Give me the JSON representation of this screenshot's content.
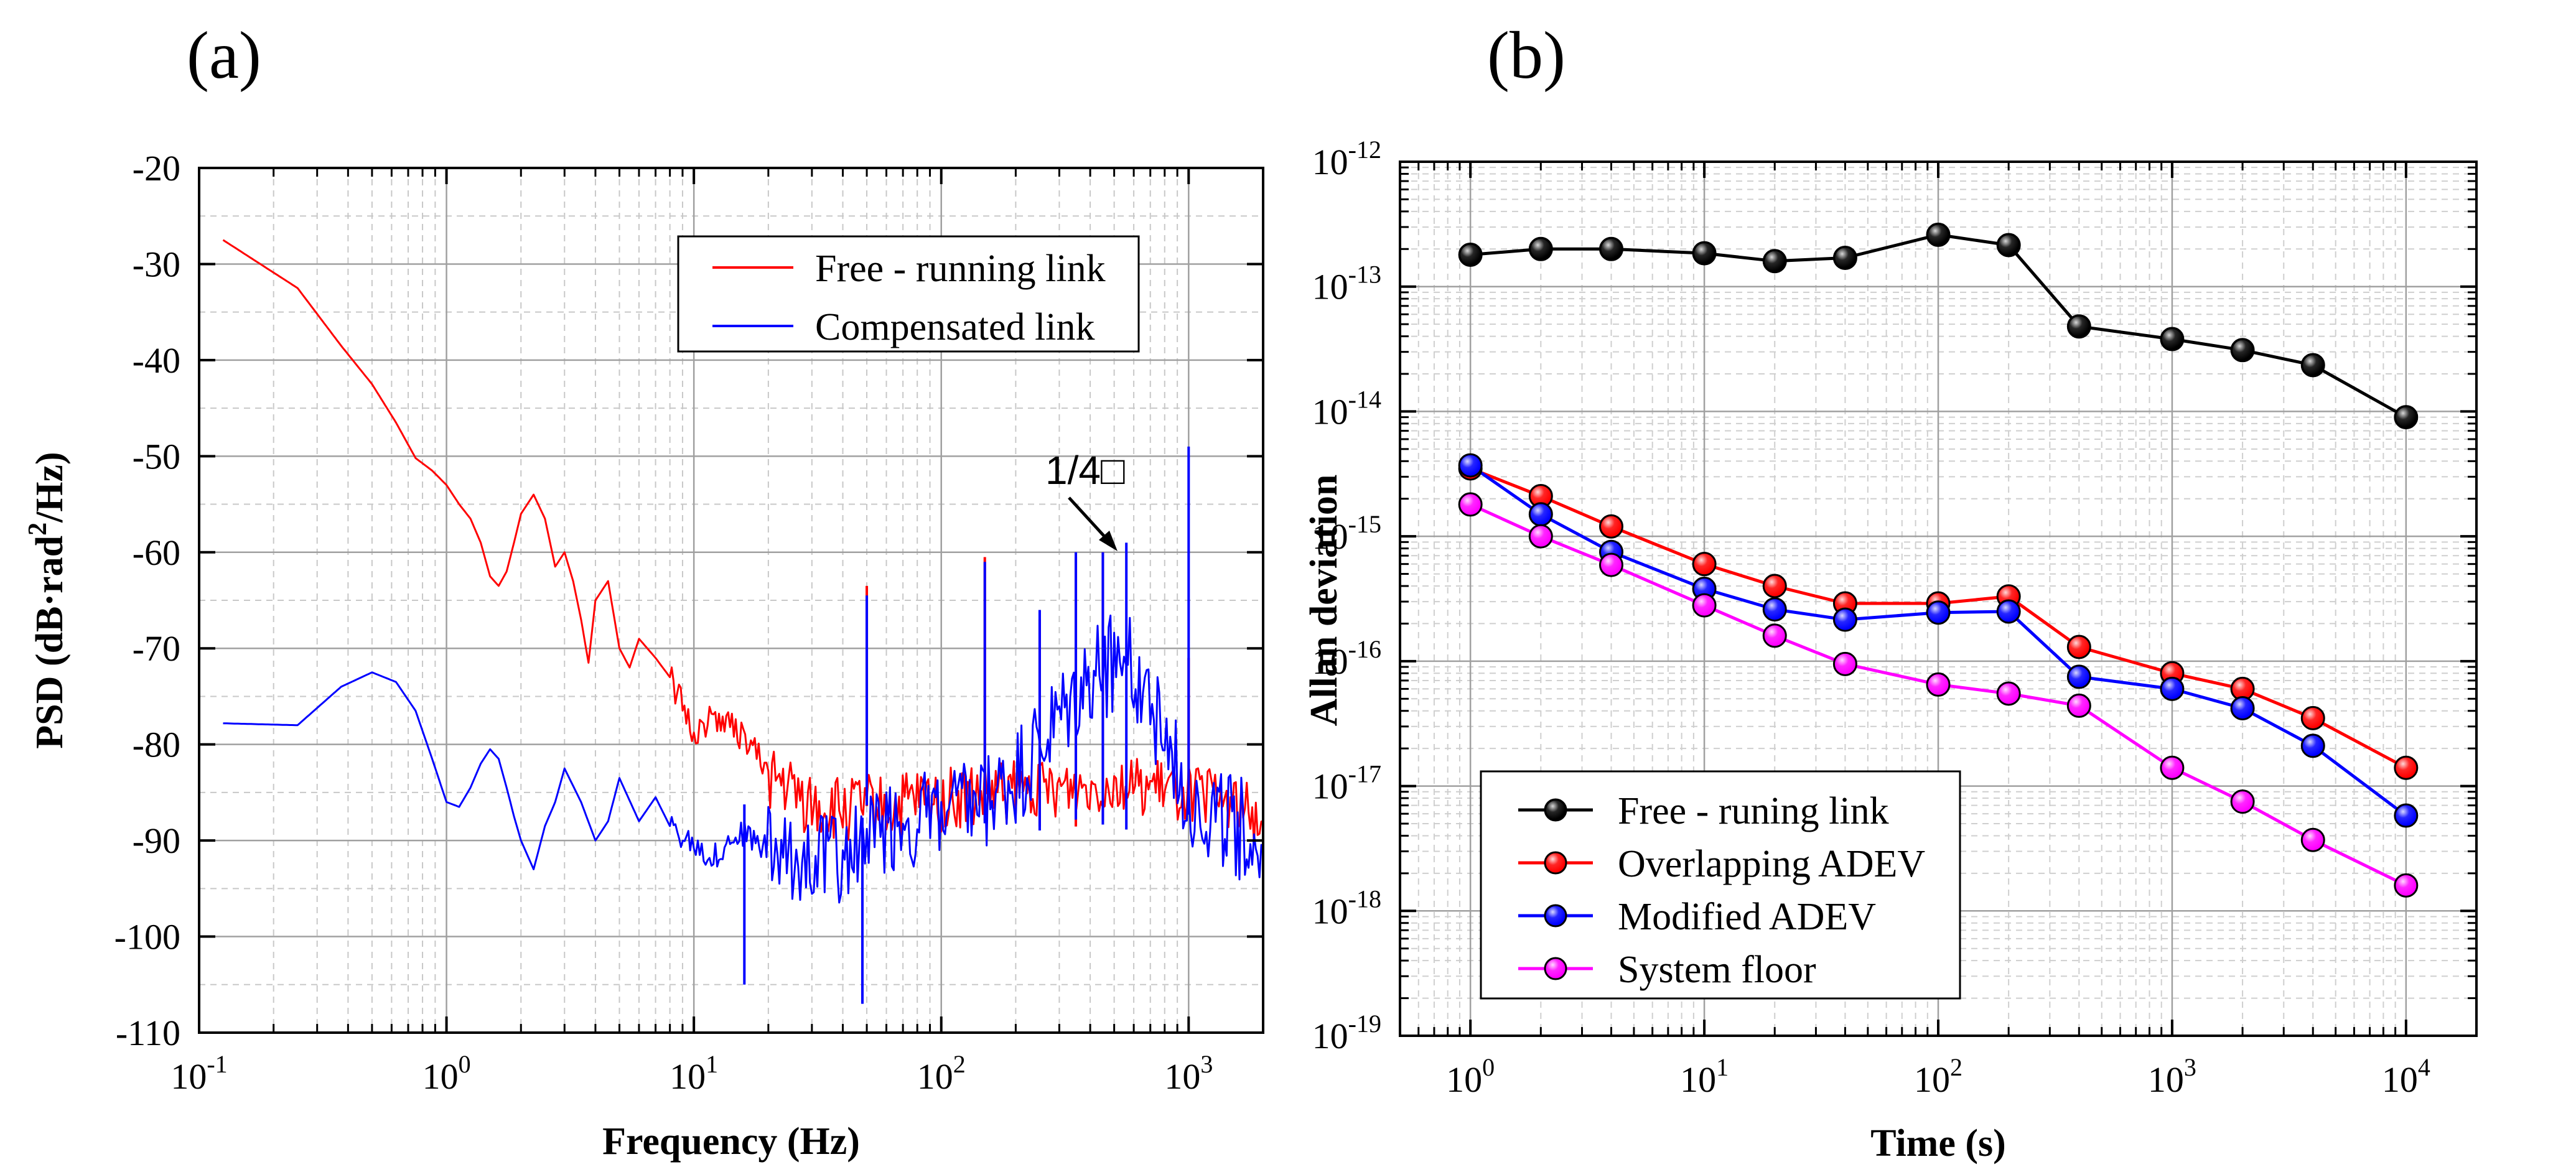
{
  "chart_data": [
    {
      "panel_label": "(a)",
      "type": "line",
      "xscale": "log",
      "xlim": [
        0.1,
        2000
      ],
      "ylim": [
        -110,
        -20
      ],
      "xlabel": "Frequency (Hz)",
      "ylabel_parts": [
        "PSD (dB·rad",
        "2",
        "/Hz)"
      ],
      "yticks": [
        -20,
        -30,
        -40,
        -50,
        -60,
        -70,
        -80,
        -90,
        -100,
        -110
      ],
      "xticks": [
        {
          "value": 0.1,
          "base": "10",
          "exp": "-1"
        },
        {
          "value": 1,
          "base": "10",
          "exp": "0"
        },
        {
          "value": 10,
          "base": "10",
          "exp": "1"
        },
        {
          "value": 100,
          "base": "10",
          "exp": "2"
        },
        {
          "value": 1000,
          "base": "10",
          "exp": "3"
        }
      ],
      "grid": true,
      "legend_position": "top-right",
      "annotation": {
        "text": "1/4□",
        "x": 560,
        "y": -60
      },
      "series": [
        {
          "name": "Free - running link",
          "color": "#ff0000",
          "x": [
            0.125,
            0.25,
            0.375,
            0.5,
            0.625,
            0.75,
            0.875,
            1.0,
            1.125,
            1.25,
            1.375,
            1.5,
            1.625,
            1.75,
            1.875,
            2.0,
            2.25,
            2.5,
            2.75,
            3.0,
            3.25,
            3.5,
            3.75,
            4.0,
            4.5,
            5.0,
            5.5,
            6.0,
            7.0,
            8.0,
            9.0,
            10.0,
            12.0,
            14.0,
            17.0,
            20.0,
            25.0,
            30.0,
            40.0,
            50.0,
            60.0,
            80.0,
            100.0,
            150.0,
            200.0,
            300.0,
            500.0,
            700.0,
            1000.0,
            1500.0,
            2000.0
          ],
          "values": [
            -27.5,
            -32.5,
            -38.5,
            -42.5,
            -46.5,
            -50.2,
            -51.5,
            -53.0,
            -55.0,
            -56.5,
            -59.0,
            -62.5,
            -63.5,
            -62.0,
            -59.0,
            -56.0,
            -54.0,
            -56.5,
            -61.5,
            -60.0,
            -63.0,
            -67.0,
            -71.5,
            -65.0,
            -63.0,
            -70.0,
            -72.0,
            -69.0,
            -71.0,
            -73.0,
            -76.0,
            -79.0,
            -77.0,
            -78.0,
            -80.0,
            -83.0,
            -85.0,
            -86.5,
            -87.0,
            -86.5,
            -87.0,
            -86.0,
            -86.0,
            -85.5,
            -85.0,
            -84.5,
            -84.0,
            -84.5,
            -85.0,
            -86.0,
            -88.0
          ],
          "spikes": [
            {
              "x": 50,
              "y": -63.5
            },
            {
              "x": 150,
              "y": -60.5
            },
            {
              "x": 250,
              "y": -67.0
            },
            {
              "x": 350,
              "y": -60.5
            },
            {
              "x": 450,
              "y": -60.0
            },
            {
              "x": 1000,
              "y": -71.0
            }
          ]
        },
        {
          "name": "Compensated link",
          "color": "#0000ff",
          "x": [
            0.125,
            0.25,
            0.375,
            0.5,
            0.625,
            0.75,
            0.875,
            1.0,
            1.125,
            1.25,
            1.375,
            1.5,
            1.625,
            1.75,
            1.875,
            2.0,
            2.25,
            2.5,
            2.75,
            3.0,
            3.5,
            4.0,
            4.5,
            5.0,
            6.0,
            7.0,
            8.0,
            10.0,
            12.0,
            15.0,
            20.0,
            25.0,
            30.0,
            40.0,
            50.0,
            60.0,
            70.0,
            80.0,
            100.0,
            150.0,
            200.0,
            300.0,
            400.0,
            500.0,
            600.0,
            700.0,
            800.0,
            1000.0,
            1200.0,
            1500.0,
            2000.0
          ],
          "values": [
            -77.8,
            -78.0,
            -74.0,
            -72.5,
            -73.5,
            -76.5,
            -81.5,
            -86.0,
            -86.5,
            -84.5,
            -82.0,
            -80.5,
            -81.5,
            -84.5,
            -87.5,
            -90.0,
            -93.0,
            -88.5,
            -86.0,
            -82.5,
            -86.0,
            -90.0,
            -88.0,
            -83.5,
            -88.0,
            -85.5,
            -88.5,
            -90.0,
            -92.0,
            -89.0,
            -91.0,
            -93.0,
            -91.0,
            -92.0,
            -90.0,
            -89.0,
            -88.5,
            -88.0,
            -87.5,
            -86.5,
            -84.0,
            -78.0,
            -73.5,
            -71.0,
            -72.5,
            -75.0,
            -80.0,
            -85.0,
            -87.5,
            -88.0,
            -91.0
          ],
          "spikes": [
            {
              "x": 16,
              "y": -105.0
            },
            {
              "x": 48,
              "y": -107.0
            },
            {
              "x": 50,
              "y": -64.5
            },
            {
              "x": 150,
              "y": -61.0
            },
            {
              "x": 250,
              "y": -66.0
            },
            {
              "x": 350,
              "y": -60.0
            },
            {
              "x": 450,
              "y": -60.0
            },
            {
              "x": 560,
              "y": -59.0
            },
            {
              "x": 1000,
              "y": -49.0
            }
          ]
        }
      ]
    },
    {
      "panel_label": "(b)",
      "type": "line",
      "xscale": "log",
      "yscale": "log",
      "xlim": [
        0.5,
        20000
      ],
      "ylim": [
        1e-19,
        1e-12
      ],
      "xlabel": "Time (s)",
      "ylabel": "Allan deviation",
      "yticks": [
        {
          "value": 1e-12,
          "base": "10",
          "exp": "-12"
        },
        {
          "value": 1e-13,
          "base": "10",
          "exp": "-13"
        },
        {
          "value": 1e-14,
          "base": "10",
          "exp": "-14"
        },
        {
          "value": 1e-15,
          "base": "10",
          "exp": "-15"
        },
        {
          "value": 1e-16,
          "base": "10",
          "exp": "-16"
        },
        {
          "value": 1e-17,
          "base": "10",
          "exp": "-17"
        },
        {
          "value": 1e-18,
          "base": "10",
          "exp": "-18"
        },
        {
          "value": 1e-19,
          "base": "10",
          "exp": "-19"
        }
      ],
      "xticks": [
        {
          "value": 1,
          "base": "10",
          "exp": "0"
        },
        {
          "value": 10,
          "base": "10",
          "exp": "1"
        },
        {
          "value": 100,
          "base": "10",
          "exp": "2"
        },
        {
          "value": 1000,
          "base": "10",
          "exp": "3"
        },
        {
          "value": 10000,
          "base": "10",
          "exp": "4"
        }
      ],
      "grid": true,
      "legend_position": "bottom-left",
      "x": [
        1,
        2,
        4,
        10,
        20,
        40,
        100,
        200,
        400,
        1000,
        2000,
        4000,
        10000
      ],
      "series": [
        {
          "name": "Free - runing link",
          "color": "#000000",
          "values": [
            1.8e-13,
            2e-13,
            2e-13,
            1.85e-13,
            1.6e-13,
            1.7e-13,
            2.6e-13,
            2.15e-13,
            4.8e-14,
            3.8e-14,
            3.1e-14,
            2.35e-14,
            9e-15
          ]
        },
        {
          "name": "Overlapping ADEV",
          "color": "#ff0000",
          "values": [
            3.5e-15,
            2.1e-15,
            1.2e-15,
            6e-16,
            4e-16,
            2.9e-16,
            2.9e-16,
            3.3e-16,
            1.3e-16,
            8e-17,
            6e-17,
            3.5e-17,
            1.4e-17
          ]
        },
        {
          "name": "Modified ADEV",
          "color": "#0000ff",
          "values": [
            3.7e-15,
            1.5e-15,
            7.5e-16,
            3.8e-16,
            2.6e-16,
            2.15e-16,
            2.45e-16,
            2.5e-16,
            7.5e-17,
            6e-17,
            4.2e-17,
            2.1e-17,
            5.8e-18
          ]
        },
        {
          "name": "System floor",
          "color": "#ff00ff",
          "values": [
            1.8e-15,
            1e-15,
            5.9e-16,
            2.8e-16,
            1.6e-16,
            9.5e-17,
            6.5e-17,
            5.5e-17,
            4.4e-17,
            1.4e-17,
            7.5e-18,
            3.7e-18,
            1.6e-18
          ]
        }
      ]
    }
  ]
}
